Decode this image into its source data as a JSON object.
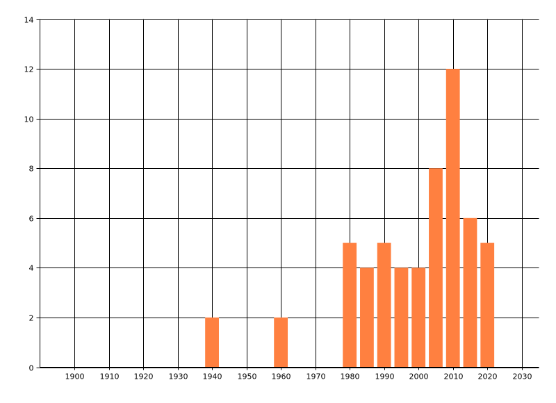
{
  "chart_data": {
    "type": "bar",
    "title": "",
    "xlabel": "",
    "ylabel": "",
    "x": [
      1940,
      1960,
      1980,
      1985,
      1990,
      1995,
      2000,
      2005,
      2010,
      2015,
      2020
    ],
    "values": [
      2,
      2,
      5,
      4,
      5,
      4,
      4,
      8,
      12,
      6,
      5
    ],
    "bar_width_years": 4,
    "xlim": [
      1890,
      2035
    ],
    "ylim": [
      0,
      14
    ],
    "x_ticks": [
      1900,
      1910,
      1920,
      1930,
      1940,
      1950,
      1960,
      1970,
      1980,
      1990,
      2000,
      2010,
      2020,
      2030
    ],
    "y_ticks": [
      0,
      2,
      4,
      6,
      8,
      10,
      12,
      14
    ],
    "grid": true,
    "bar_color": "#FF8040",
    "grid_color": "#000000"
  }
}
